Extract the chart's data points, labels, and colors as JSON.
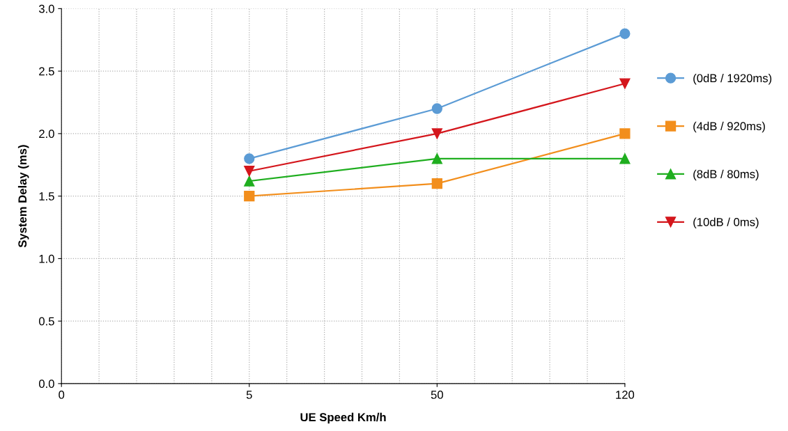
{
  "chart_data": {
    "type": "line",
    "xlabel": "UE Speed Km/h",
    "ylabel": "System Delay (ms)",
    "categories": [
      "0",
      "5",
      "50",
      "120"
    ],
    "series": [
      {
        "name": "(0dB / 1920ms)",
        "color": "#5b9bd5",
        "marker": "circle",
        "values": [
          null,
          1.8,
          2.2,
          2.8
        ]
      },
      {
        "name": "(4dB / 920ms)",
        "color": "#f28e1c",
        "marker": "square",
        "values": [
          null,
          1.5,
          1.6,
          2.0
        ]
      },
      {
        "name": "(8dB / 80ms)",
        "color": "#1fae1f",
        "marker": "triangle",
        "values": [
          null,
          1.62,
          1.8,
          1.8
        ]
      },
      {
        "name": "(10dB / 0ms)",
        "color": "#d4161c",
        "marker": "triangle-down",
        "values": [
          null,
          1.7,
          2.0,
          2.4
        ]
      }
    ],
    "ylim": [
      0,
      3.0
    ],
    "yticks": [
      {
        "value": 0,
        "label": "0.0"
      },
      {
        "value": 0.5,
        "label": "0.5"
      },
      {
        "value": 1.0,
        "label": "1.0"
      },
      {
        "value": 1.5,
        "label": "1.5"
      },
      {
        "value": 2.0,
        "label": "2.0"
      },
      {
        "value": 2.5,
        "label": "2.5"
      },
      {
        "value": 3.0,
        "label": "3.0"
      }
    ],
    "grid": true,
    "legend": "right",
    "line_style": "solid"
  }
}
